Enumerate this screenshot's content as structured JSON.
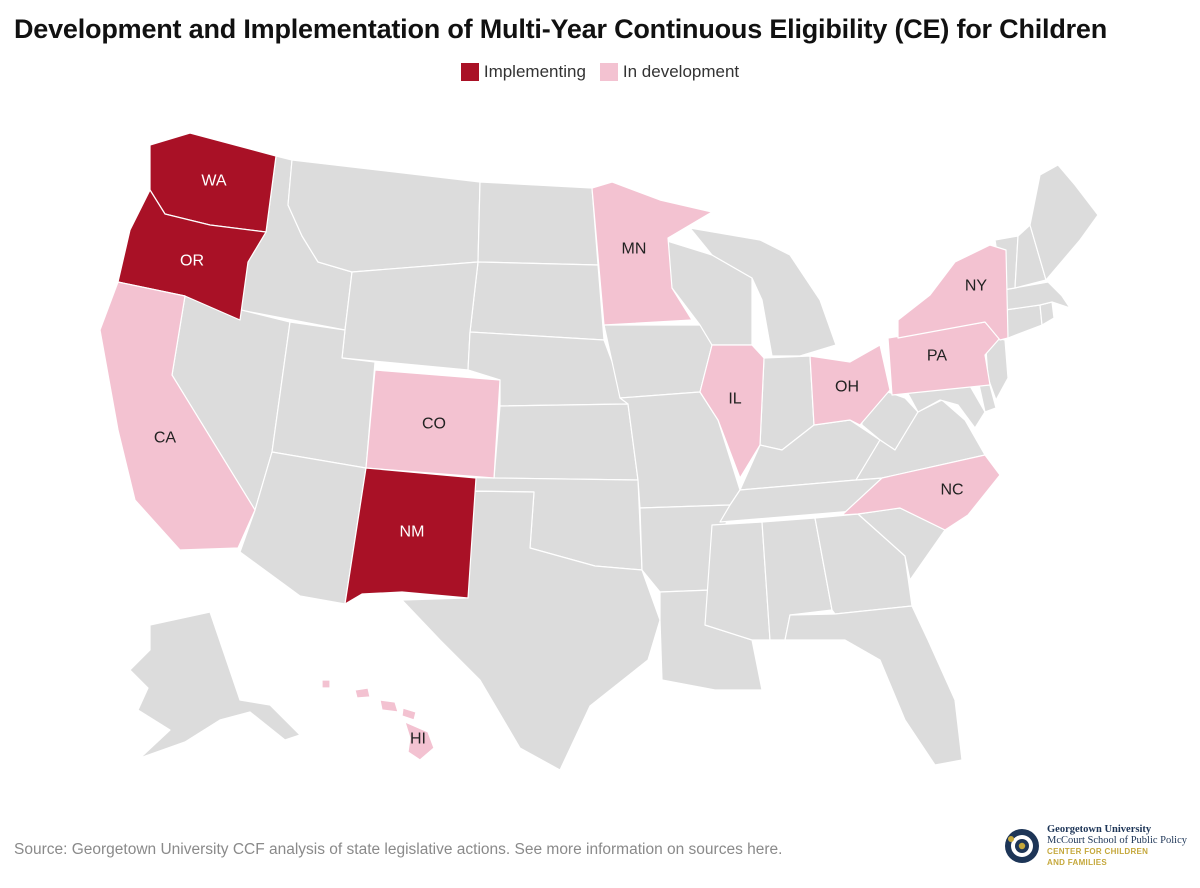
{
  "title": "Development and Implementation of Multi-Year Continuous Eligibility (CE) for Children",
  "legend": [
    {
      "label": "Implementing",
      "color": "#a91126"
    },
    {
      "label": "In development",
      "color": "#f3c2d1"
    }
  ],
  "colors": {
    "implementing": "#a91126",
    "in_development": "#f3c2d1",
    "other": "#dcdcdc"
  },
  "states": [
    {
      "code": "WA",
      "label": "WA",
      "status": "implementing"
    },
    {
      "code": "OR",
      "label": "OR",
      "status": "implementing"
    },
    {
      "code": "NM",
      "label": "NM",
      "status": "implementing"
    },
    {
      "code": "CA",
      "label": "CA",
      "status": "in_development"
    },
    {
      "code": "CO",
      "label": "CO",
      "status": "in_development"
    },
    {
      "code": "MN",
      "label": "MN",
      "status": "in_development"
    },
    {
      "code": "IL",
      "label": "IL",
      "status": "in_development"
    },
    {
      "code": "OH",
      "label": "OH",
      "status": "in_development"
    },
    {
      "code": "PA",
      "label": "PA",
      "status": "in_development"
    },
    {
      "code": "NY",
      "label": "NY",
      "status": "in_development"
    },
    {
      "code": "NC",
      "label": "NC",
      "status": "in_development"
    },
    {
      "code": "HI",
      "label": "HI",
      "status": "in_development"
    }
  ],
  "source": "Source: Georgetown University CCF analysis of state legislative actions. See more information on sources here.",
  "logo": {
    "line1": "Georgetown University",
    "line2": "McCourt School of Public Policy",
    "line3": "CENTER FOR CHILDREN",
    "line4": "AND FAMILIES",
    "icon": "georgetown-seal-icon"
  }
}
